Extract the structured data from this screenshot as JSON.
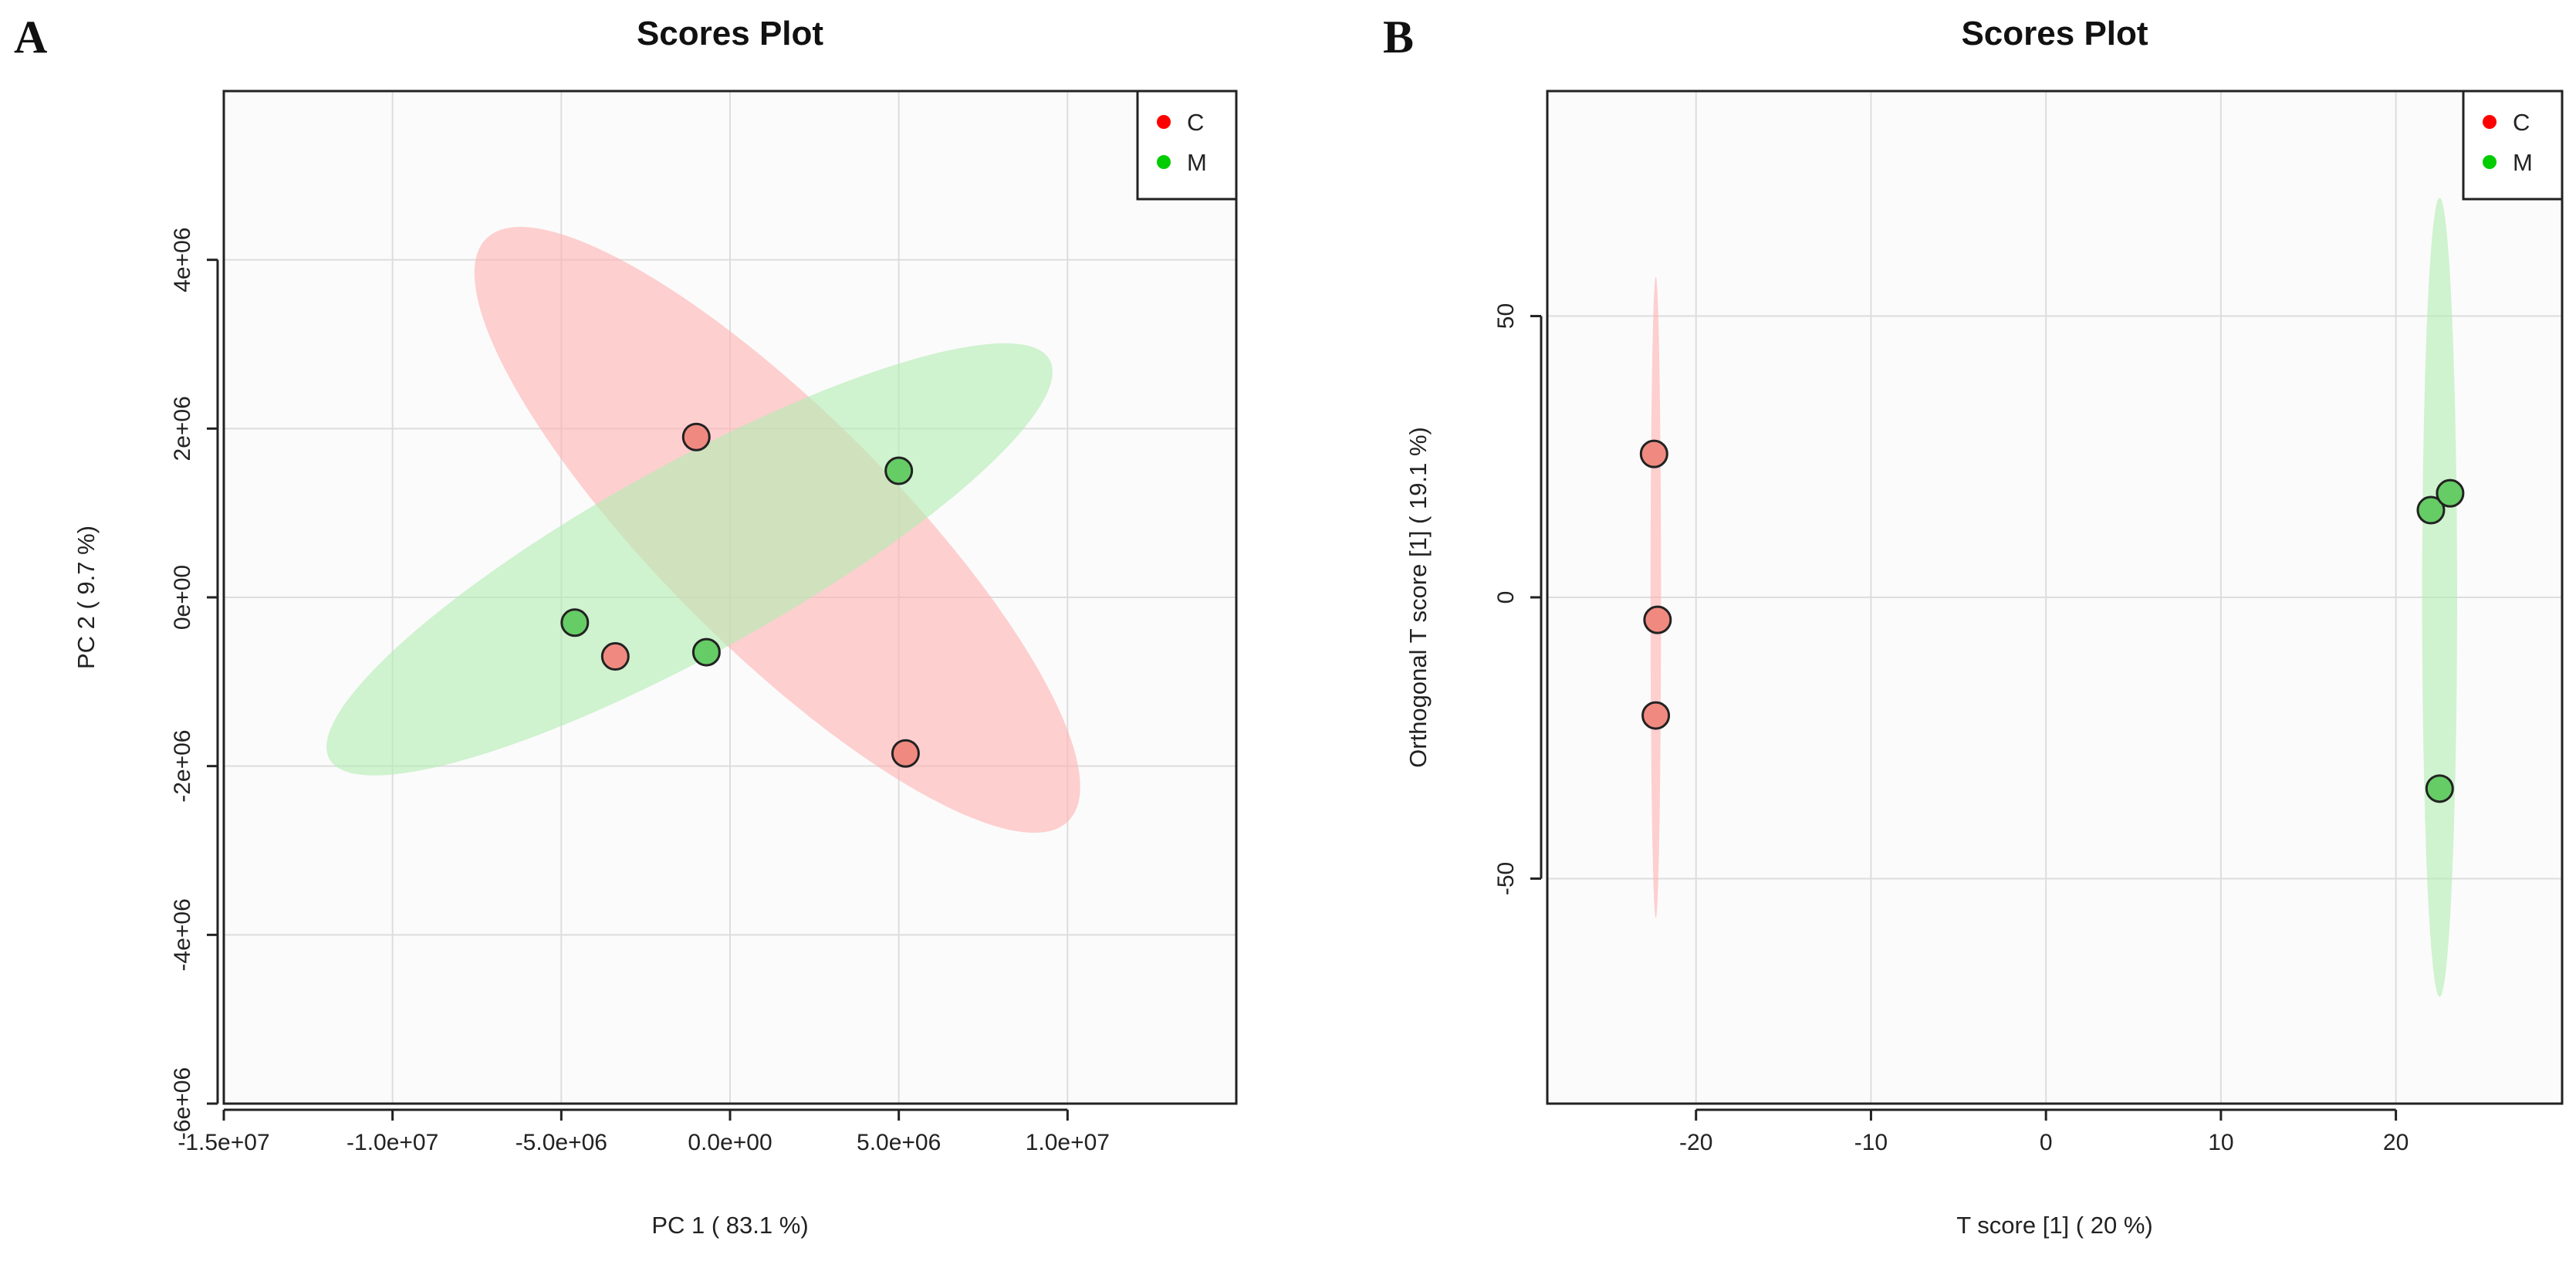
{
  "chart_data": [
    {
      "type": "scatter",
      "panel": "A",
      "title": "Scores Plot",
      "xlabel": "PC 1 ( 83.1 %)",
      "ylabel": "PC 2 ( 9.7 %)",
      "xlim": [
        -15000000,
        15000000
      ],
      "ylim": [
        -6000000,
        6000000
      ],
      "xticks": [
        -15000000,
        -10000000,
        -5000000,
        0,
        5000000,
        10000000
      ],
      "xtick_labels": [
        "-1.5e+07",
        "-1.0e+07",
        "-5.0e+06",
        "0.0e+00",
        "5.0e+06",
        "1.0e+07"
      ],
      "yticks": [
        -6000000,
        -4000000,
        -2000000,
        0,
        2000000,
        4000000
      ],
      "ytick_labels": [
        "-6e+06",
        "-4e+06",
        "-2e+06",
        "0e+00",
        "2e+06",
        "4e+06"
      ],
      "grid": true,
      "legend_position": "top-right",
      "series": [
        {
          "name": "C",
          "color": "#e8e8e8",
          "legend_color": "#ff0000",
          "point_fill": "#f08a80",
          "ellipse_fill": "#ffb3b3",
          "points": [
            [
              -1000000,
              1900000
            ],
            [
              -3400000,
              -700000
            ],
            [
              5200000,
              -1850000
            ]
          ],
          "ellipse": {
            "cx": 1400000,
            "cy": 800000,
            "rx": 12200000,
            "ry": 3500000,
            "angle": -45
          }
        },
        {
          "name": "M",
          "legend_color": "#00cc00",
          "point_fill": "#66cc66",
          "ellipse_fill": "#b3ecb3",
          "points": [
            [
              -4600000,
              -300000
            ],
            [
              -700000,
              -650000
            ],
            [
              5000000,
              1500000
            ]
          ],
          "ellipse": {
            "cx": -1200000,
            "cy": 450000,
            "rx": 12200000,
            "ry": 2800000,
            "angle": 29
          }
        }
      ]
    },
    {
      "type": "scatter",
      "panel": "B",
      "title": "Scores Plot",
      "xlabel": "T score [1] ( 20 %)",
      "ylabel": "Orthogonal T score [1] ( 19.1 %)",
      "xlim": [
        -28.5,
        29.5
      ],
      "ylim": [
        -90,
        90
      ],
      "xticks": [
        -20,
        -10,
        0,
        10,
        20
      ],
      "xtick_labels": [
        "-20",
        "-10",
        "0",
        "10",
        "20"
      ],
      "yticks": [
        -50,
        0,
        50
      ],
      "ytick_labels": [
        "-50",
        "0",
        "50"
      ],
      "grid": true,
      "legend_position": "top-right",
      "series": [
        {
          "name": "C",
          "legend_color": "#ff0000",
          "point_fill": "#f08a80",
          "ellipse_fill": "#ffb3b3",
          "points": [
            [
              -22.4,
              25.5
            ],
            [
              -22.2,
              -4
            ],
            [
              -22.3,
              -21
            ]
          ],
          "ellipse": {
            "cx": -22.3,
            "cy": 0,
            "rx": 0.3,
            "ry": 57,
            "angle": 0
          }
        },
        {
          "name": "M",
          "legend_color": "#00cc00",
          "point_fill": "#66cc66",
          "ellipse_fill": "#b3ecb3",
          "points": [
            [
              22,
              15.5
            ],
            [
              23.1,
              18.5
            ],
            [
              22.5,
              -34
            ]
          ],
          "ellipse": {
            "cx": 22.5,
            "cy": 0,
            "rx": 1,
            "ry": 71,
            "angle": 0
          }
        }
      ]
    }
  ]
}
